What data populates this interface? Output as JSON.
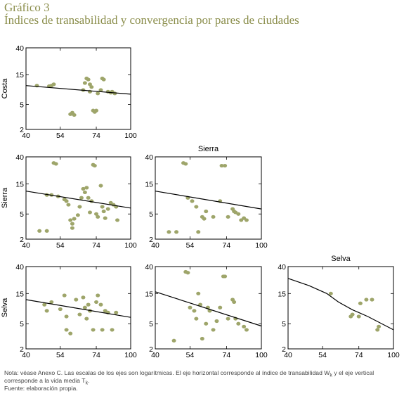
{
  "figure": {
    "label": "Gráfico 3",
    "title": "Índices de transabilidad y convergencia por pares de ciudades"
  },
  "notes": {
    "line1a": "Nota: véase Anexo C. Las escalas de los ejes son logarítmicas. El eje horizontal corresponde al índice de transabilidad W",
    "line1_sub": "k",
    "line1b": " y el eje vertical",
    "line2a": "corresponde a la vida media T",
    "line2_sub": "k",
    "line2b": ".",
    "line3": "Fuente: elaboración propia."
  },
  "colors": {
    "points": "#9ea56a",
    "line": "#000000",
    "header": "#8a8d4a"
  },
  "chart_data": [
    {
      "type": "scatter",
      "row_label": "Costa",
      "title": "",
      "xscale": "log",
      "yscale": "log",
      "xlim": [
        40,
        100
      ],
      "ylim": [
        2,
        40
      ],
      "xticks": [
        40,
        54,
        74,
        100
      ],
      "yticks": [
        2,
        5,
        15,
        40
      ],
      "fit": [
        [
          40,
          10.0
        ],
        [
          100,
          7.3
        ]
      ],
      "points": [
        [
          44,
          10
        ],
        [
          49,
          9.8
        ],
        [
          50,
          10
        ],
        [
          51,
          10.5
        ],
        [
          59,
          3.5
        ],
        [
          60,
          3.7
        ],
        [
          61,
          3.4
        ],
        [
          66,
          8.5
        ],
        [
          67,
          11
        ],
        [
          68,
          13
        ],
        [
          69,
          12.5
        ],
        [
          70,
          10.5
        ],
        [
          70,
          8
        ],
        [
          71,
          9.5
        ],
        [
          72,
          4
        ],
        [
          73,
          3.8
        ],
        [
          74,
          4
        ],
        [
          77,
          8.5
        ],
        [
          78,
          13
        ],
        [
          79,
          12.5
        ],
        [
          82,
          8
        ],
        [
          84,
          7.7
        ],
        [
          85,
          8
        ],
        [
          87,
          7.5
        ],
        [
          75,
          7.5
        ]
      ]
    },
    {
      "type": "scatter",
      "row_label": "Sierra",
      "title": "",
      "xscale": "log",
      "yscale": "log",
      "xlim": [
        40,
        100
      ],
      "ylim": [
        2,
        40
      ],
      "xticks": [
        40,
        54,
        74,
        100
      ],
      "yticks": [
        2,
        5,
        15,
        40
      ],
      "fit": [
        [
          40,
          11.5
        ],
        [
          100,
          6.2
        ]
      ],
      "points": [
        [
          45,
          2.7
        ],
        [
          48,
          2.7
        ],
        [
          48,
          10
        ],
        [
          50,
          10
        ],
        [
          51,
          32
        ],
        [
          52,
          31
        ],
        [
          53,
          9.5
        ],
        [
          56,
          8.5
        ],
        [
          57,
          8
        ],
        [
          58,
          7
        ],
        [
          59,
          4
        ],
        [
          60,
          3
        ],
        [
          60,
          3.5
        ],
        [
          61,
          4.2
        ],
        [
          63,
          4.8
        ],
        [
          64,
          6.5
        ],
        [
          65,
          9
        ],
        [
          66,
          12.5
        ],
        [
          67,
          11
        ],
        [
          68,
          13
        ],
        [
          69,
          9
        ],
        [
          70,
          5.3
        ],
        [
          71,
          8
        ],
        [
          72,
          30
        ],
        [
          73,
          29
        ],
        [
          74,
          5
        ],
        [
          75,
          4.5
        ],
        [
          77,
          14
        ],
        [
          78,
          6.5
        ],
        [
          79,
          5.5
        ],
        [
          80,
          4.3
        ],
        [
          82,
          6
        ],
        [
          84,
          7.5
        ],
        [
          86,
          7
        ],
        [
          88,
          6.5
        ],
        [
          89,
          4
        ]
      ]
    },
    {
      "type": "scatter",
      "row_label": "",
      "title": "Sierra",
      "xscale": "log",
      "yscale": "log",
      "xlim": [
        40,
        100
      ],
      "ylim": [
        2,
        40
      ],
      "xticks": [
        40,
        54,
        74,
        100
      ],
      "yticks": [
        2,
        5,
        15,
        40
      ],
      "fit": [
        [
          40,
          11.5
        ],
        [
          100,
          6.0
        ]
      ],
      "points": [
        [
          45,
          2.6
        ],
        [
          48,
          2.6
        ],
        [
          51,
          32
        ],
        [
          52,
          31
        ],
        [
          53,
          9
        ],
        [
          55,
          8
        ],
        [
          57,
          6.5
        ],
        [
          58,
          2.6
        ],
        [
          60,
          4.5
        ],
        [
          61,
          4.2
        ],
        [
          62,
          5.5
        ],
        [
          66,
          4.5
        ],
        [
          70,
          8
        ],
        [
          71,
          29
        ],
        [
          73,
          29
        ],
        [
          75,
          4.5
        ],
        [
          78,
          6
        ],
        [
          79,
          5.5
        ],
        [
          80,
          5.3
        ],
        [
          82,
          5
        ],
        [
          84,
          4
        ],
        [
          86,
          4.3
        ],
        [
          88,
          4
        ]
      ]
    },
    {
      "type": "scatter",
      "row_label": "Selva",
      "title": "",
      "xscale": "log",
      "yscale": "log",
      "xlim": [
        40,
        100
      ],
      "ylim": [
        2,
        40
      ],
      "xticks": [
        40,
        54,
        74,
        100
      ],
      "yticks": [
        2,
        5,
        15,
        40
      ],
      "fit": [
        [
          40,
          12.0
        ],
        [
          100,
          6.3
        ]
      ],
      "points": [
        [
          47,
          10
        ],
        [
          48,
          8
        ],
        [
          50,
          11
        ],
        [
          54,
          8.5
        ],
        [
          56,
          14
        ],
        [
          57,
          6.5
        ],
        [
          57,
          4
        ],
        [
          59,
          3.5
        ],
        [
          62,
          12
        ],
        [
          64,
          7
        ],
        [
          66,
          13
        ],
        [
          67,
          9
        ],
        [
          68,
          6
        ],
        [
          69,
          10
        ],
        [
          70,
          8
        ],
        [
          72,
          4
        ],
        [
          74,
          11
        ],
        [
          75,
          14
        ],
        [
          77,
          10
        ],
        [
          78,
          4
        ],
        [
          80,
          8
        ],
        [
          82,
          7.5
        ],
        [
          85,
          4
        ],
        [
          88,
          7.5
        ]
      ]
    },
    {
      "type": "scatter",
      "row_label": "",
      "title": "",
      "xscale": "log",
      "yscale": "log",
      "xlim": [
        40,
        100
      ],
      "ylim": [
        2,
        40
      ],
      "xticks": [
        40,
        54,
        74,
        100
      ],
      "yticks": [
        2,
        5,
        15,
        40
      ],
      "fit": [
        [
          40,
          16.0
        ],
        [
          100,
          4.6
        ]
      ],
      "points": [
        [
          47,
          2.7
        ],
        [
          52,
          33
        ],
        [
          53,
          32
        ],
        [
          54,
          9
        ],
        [
          56,
          8
        ],
        [
          57,
          6
        ],
        [
          58,
          15
        ],
        [
          59,
          10
        ],
        [
          60,
          2.9
        ],
        [
          62,
          5
        ],
        [
          63,
          9
        ],
        [
          64,
          8
        ],
        [
          66,
          4
        ],
        [
          68,
          5.5
        ],
        [
          70,
          9
        ],
        [
          72,
          28
        ],
        [
          73,
          28
        ],
        [
          75,
          6
        ],
        [
          78,
          12
        ],
        [
          79,
          11
        ],
        [
          80,
          6
        ],
        [
          82,
          5
        ],
        [
          86,
          4.5
        ],
        [
          88,
          4
        ]
      ]
    },
    {
      "type": "scatter",
      "row_label": "",
      "title": "Selva",
      "xscale": "log",
      "yscale": "log",
      "xlim": [
        40,
        100
      ],
      "ylim": [
        2,
        40
      ],
      "xticks": [
        40,
        54,
        74,
        100
      ],
      "yticks": [
        2,
        5,
        15,
        40
      ],
      "fit": [
        [
          40,
          26
        ],
        [
          48,
          20
        ],
        [
          56,
          15
        ],
        [
          62,
          11
        ],
        [
          70,
          8.3
        ],
        [
          80,
          6.5
        ],
        [
          100,
          4.0
        ]
      ],
      "points": [
        [
          58,
          15
        ],
        [
          69,
          6.5
        ],
        [
          70,
          7
        ],
        [
          74,
          6.5
        ],
        [
          75,
          10.5
        ],
        [
          79,
          12
        ],
        [
          83,
          12
        ],
        [
          87,
          4
        ],
        [
          88,
          4.5
        ]
      ]
    }
  ]
}
